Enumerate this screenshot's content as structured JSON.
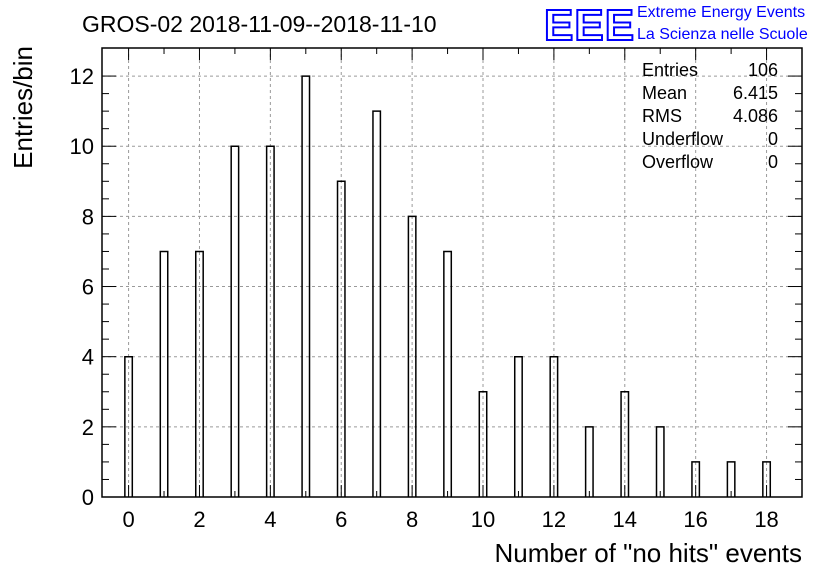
{
  "chart_data": {
    "type": "bar",
    "title": "GROS-02 2018-11-09--2018-11-10",
    "xlabel": "Number of \"no hits\" events",
    "ylabel": "Entries/bin",
    "x": [
      0,
      1,
      2,
      3,
      4,
      5,
      6,
      7,
      8,
      9,
      10,
      11,
      12,
      13,
      14,
      15,
      16,
      17,
      18
    ],
    "values": [
      4,
      7,
      7,
      10,
      10,
      12,
      9,
      11,
      8,
      7,
      3,
      4,
      4,
      2,
      3,
      2,
      1,
      1,
      1
    ],
    "xlim": [
      -0.75,
      19.0
    ],
    "ylim": [
      0,
      12.8
    ],
    "xticks": [
      0,
      2,
      4,
      6,
      8,
      10,
      12,
      14,
      16,
      18
    ],
    "yticks": [
      0,
      2,
      4,
      6,
      8,
      10,
      12
    ],
    "grid": true,
    "stats": {
      "entries_label": "Entries",
      "entries": "106",
      "mean_label": "Mean",
      "mean": "6.415",
      "rms_label": "RMS",
      "rms": "4.086",
      "underflow_label": "Underflow",
      "underflow": "0",
      "overflow_label": "Overflow",
      "overflow": "0"
    },
    "logo": {
      "text": "EEE",
      "line1": "Extreme Energy Events",
      "line2": "La Scienza nelle Scuole",
      "color": "#0000ff"
    }
  }
}
